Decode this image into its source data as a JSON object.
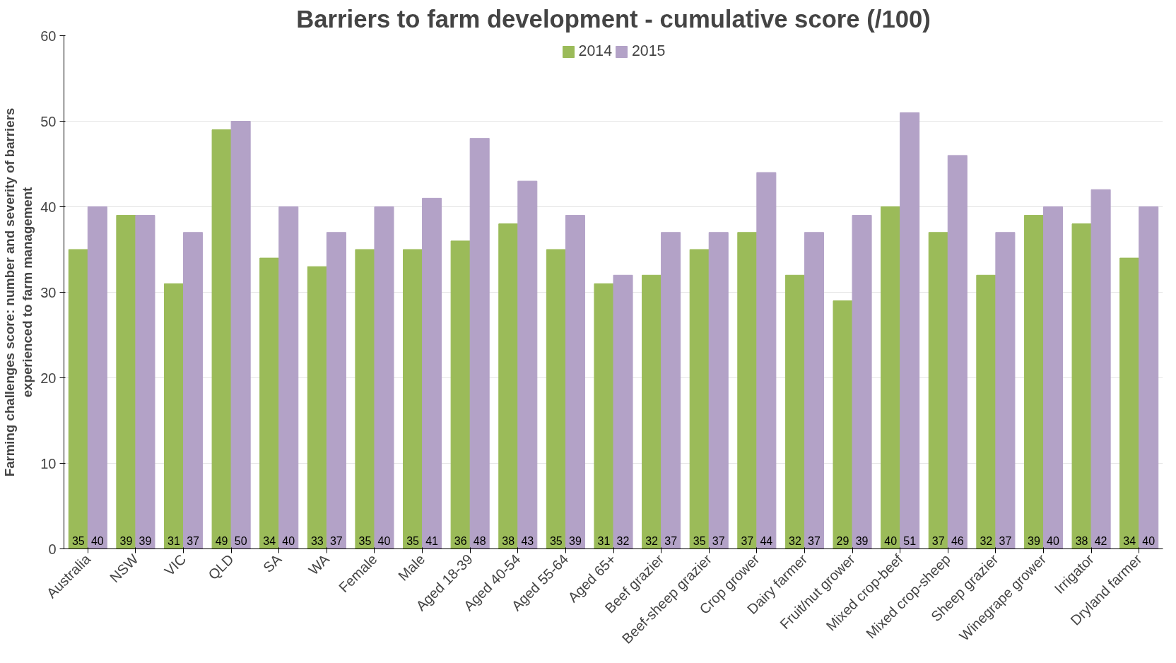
{
  "chart_data": {
    "type": "bar",
    "title": "Barriers to farm development - cumulative score (/100)",
    "ylabel": "Farming challenges score: number and severity of barriers\nexperienced to farm management",
    "categories": [
      "Australia",
      "NSW",
      "VIC",
      "QLD",
      "SA",
      "WA",
      "Female",
      "Male",
      "Aged 18-39",
      "Aged 40-54",
      "Aged 55-64",
      "Aged 65+",
      "Beef grazier",
      "Beef-sheep grazier",
      "Crop grower",
      "Dairy farmer",
      "Fruit/nut grower",
      "Mixed crop-beef",
      "Mixed crop-sheep",
      "Sheep grazier",
      "Winegrape grower",
      "Irrigator",
      "Dryland farmer"
    ],
    "series": [
      {
        "name": "2014",
        "color": "#9bbb59",
        "values": [
          35,
          39,
          31,
          49,
          34,
          33,
          35,
          35,
          36,
          38,
          35,
          31,
          32,
          35,
          37,
          32,
          29,
          40,
          37,
          32,
          39,
          38,
          34
        ]
      },
      {
        "name": "2015",
        "color": "#b3a2c7",
        "values": [
          40,
          39,
          37,
          50,
          40,
          37,
          40,
          41,
          48,
          43,
          39,
          32,
          37,
          37,
          44,
          37,
          39,
          51,
          46,
          37,
          40,
          42,
          40
        ]
      }
    ],
    "ylim": [
      0,
      60
    ],
    "yticks": [
      0,
      10,
      20,
      30,
      40,
      50,
      60
    ],
    "grid": "y",
    "legend": "top",
    "data_labels": true
  }
}
